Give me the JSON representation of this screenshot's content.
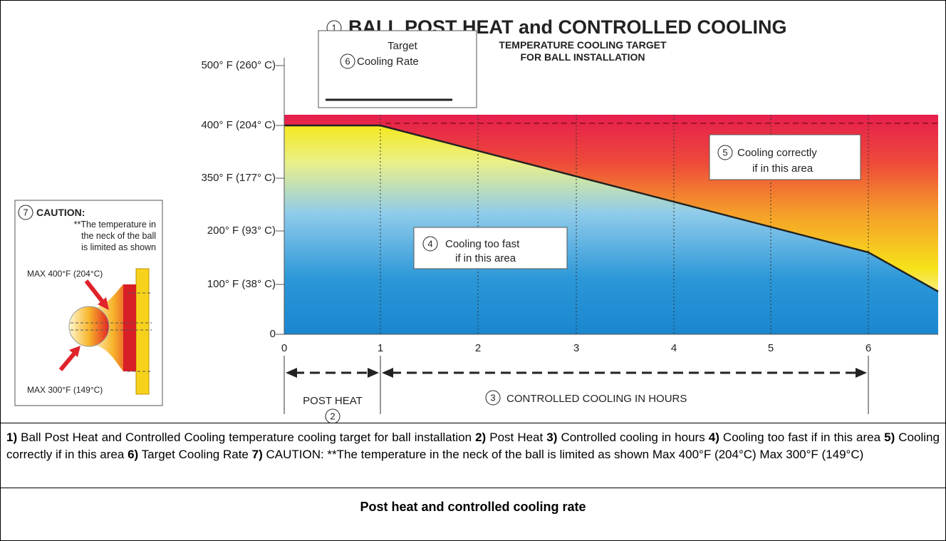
{
  "figure": {
    "title_num": "1",
    "title": "BALL POST HEAT and CONTROLLED COOLING",
    "subtitle": [
      "TEMPERATURE COOLING TARGET",
      "FOR BALL INSTALLATION"
    ],
    "y_labels": [
      "500° F (260° C)",
      "400° F (204° C)",
      "350° F (177° C)",
      "200° F (93° C)",
      "100° F (38° C)",
      "0"
    ],
    "x_labels": [
      "0",
      "1",
      "2",
      "3",
      "4",
      "5",
      "6"
    ],
    "legend": {
      "num": "6",
      "lines": [
        "Target",
        "Cooling Rate"
      ]
    },
    "zone_fast": {
      "num": "4",
      "lines": [
        "Cooling too fast",
        "if in this area"
      ]
    },
    "zone_correct": {
      "num": "5",
      "lines": [
        "Cooling correctly",
        "if in this area"
      ]
    },
    "post_heat": {
      "label": "POST HEAT",
      "num": "2"
    },
    "cooling": {
      "num": "3",
      "label": "CONTROLLED COOLING IN HOURS"
    },
    "caution": {
      "num": "7",
      "heading": "CAUTION:",
      "lines": [
        "**The temperature in",
        "the neck of the ball",
        "is limited as shown"
      ],
      "max_top": "MAX 400°F (204°C)",
      "max_bottom": "MAX 300°F (149°C)"
    }
  },
  "caption": [
    {
      "num": "1)",
      "text": "Ball Post Heat and Controlled Cooling temperature cooling target for ball installation"
    },
    {
      "num": "2)",
      "text": "Post Heat"
    },
    {
      "num": "3)",
      "text": "Controlled cooling in hours"
    },
    {
      "num": "4)",
      "text": "Cooling too fast if in this area"
    },
    {
      "num": "5)",
      "text": "Cooling correctly if in this area"
    },
    {
      "num": "6)",
      "text": "Target Cooling Rate"
    },
    {
      "num": "7)",
      "text": "CAUTION: **The temperature in the neck of the ball is limited as shown Max 400°F (204°C) Max 300°F (149°C)"
    }
  ],
  "footer_title": "Post heat and controlled cooling rate"
}
